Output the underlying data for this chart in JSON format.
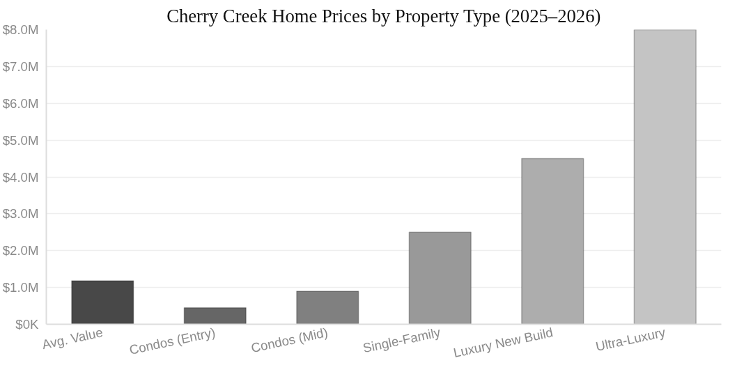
{
  "chart_data": {
    "type": "bar",
    "title": "Cherry Creek Home Prices by Property Type (2025–2026)",
    "categories": [
      "Avg. Value",
      "Condos (Entry)",
      "Condos (Mid)",
      "Single-Family",
      "Luxury New Build",
      "Ultra-Luxury"
    ],
    "values": [
      1.18,
      0.45,
      0.9,
      2.5,
      4.5,
      8.0
    ],
    "colors": [
      "#484848",
      "#666666",
      "#808080",
      "#999999",
      "#adadad",
      "#c4c4c4"
    ],
    "ylim": [
      0,
      8
    ],
    "yticks": [
      {
        "value": 0,
        "label": "$0K"
      },
      {
        "value": 1,
        "label": "$1.0M"
      },
      {
        "value": 2,
        "label": "$2.0M"
      },
      {
        "value": 3,
        "label": "$3.0M"
      },
      {
        "value": 4,
        "label": "$4.0M"
      },
      {
        "value": 5,
        "label": "$5.0M"
      },
      {
        "value": 6,
        "label": "$6.0M"
      },
      {
        "value": 7,
        "label": "$7.0M"
      },
      {
        "value": 8,
        "label": "$8.0M"
      }
    ],
    "grid": "y"
  }
}
